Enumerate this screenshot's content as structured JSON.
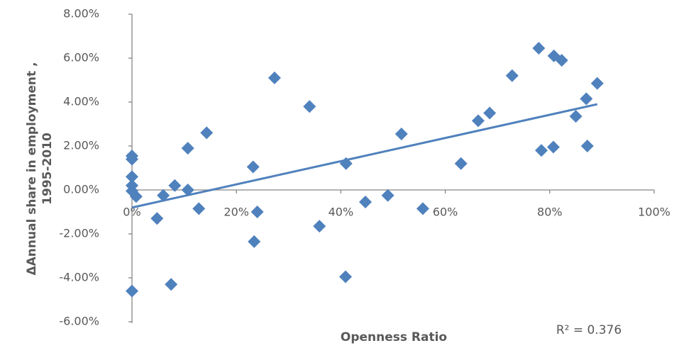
{
  "chart_data": {
    "type": "scatter",
    "x_label": "Openness Ratio",
    "y_label": [
      "ΔAnnual share in employment  ,",
      "1995-2010"
    ],
    "annotation": "R² = 0.376",
    "trendline": true,
    "series": [
      {
        "color": "#4f81bd",
        "x": [
          0,
          0,
          0,
          0,
          0,
          0.8,
          0,
          4.8,
          6,
          7.5,
          8.2,
          10.7,
          10.7,
          12.8,
          14.3,
          23.2,
          23.4,
          24,
          27.3,
          34,
          35.9,
          41,
          40.9,
          44.7,
          49,
          51.6,
          55.7,
          63,
          66.3,
          68.5,
          72.8,
          77.9,
          78.4,
          80.7,
          80.8,
          82.3,
          85,
          87,
          87.2,
          89.1
        ],
        "values": [
          1.55,
          1.4,
          0.6,
          0.2,
          -0.05,
          -0.3,
          -4.6,
          -1.3,
          -0.25,
          -4.3,
          0.2,
          1.9,
          0,
          -0.85,
          2.6,
          1.05,
          -2.35,
          -1.0,
          5.1,
          3.8,
          -1.65,
          1.2,
          -3.95,
          -0.55,
          -0.25,
          2.55,
          -0.85,
          1.2,
          3.15,
          3.5,
          5.2,
          6.45,
          1.8,
          1.95,
          6.1,
          5.9,
          3.35,
          4.15,
          2.0,
          4.85
        ]
      }
    ],
    "xlim": [
      0,
      100
    ],
    "xticks": [
      {
        "value": 0,
        "label": "0%"
      },
      {
        "value": 20,
        "label": "20%"
      },
      {
        "value": 40,
        "label": "40%"
      },
      {
        "value": 60,
        "label": "60%"
      },
      {
        "value": 80,
        "label": "80%"
      },
      {
        "value": 100,
        "label": "100%"
      }
    ],
    "ylim": [
      -6,
      8
    ],
    "yticks": [
      {
        "value": -6,
        "label": "-6.00%"
      },
      {
        "value": -4,
        "label": "-4.00%"
      },
      {
        "value": -2,
        "label": "-2.00%"
      },
      {
        "value": 0,
        "label": "0.00%"
      },
      {
        "value": 2,
        "label": "2.00%"
      },
      {
        "value": 4,
        "label": "4.00%"
      },
      {
        "value": 6,
        "label": "6.00%"
      },
      {
        "value": 8,
        "label": "8.00%"
      }
    ]
  }
}
